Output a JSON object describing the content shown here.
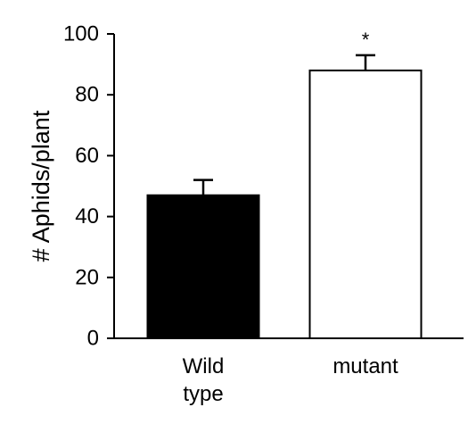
{
  "chart_data": {
    "type": "bar",
    "title": "",
    "xlabel": "",
    "ylabel": "# Aphids/plant",
    "ylim": [
      0,
      100
    ],
    "yticks": [
      0,
      20,
      40,
      60,
      80,
      100
    ],
    "grid": false,
    "legend": "none",
    "categories": [
      {
        "lines": [
          "Wild",
          "type"
        ],
        "value": 47,
        "error": 5,
        "fill": "#000000",
        "marker": ""
      },
      {
        "lines": [
          "mutant"
        ],
        "value": 88,
        "error": 5,
        "fill": "#ffffff",
        "marker": "*"
      }
    ]
  }
}
